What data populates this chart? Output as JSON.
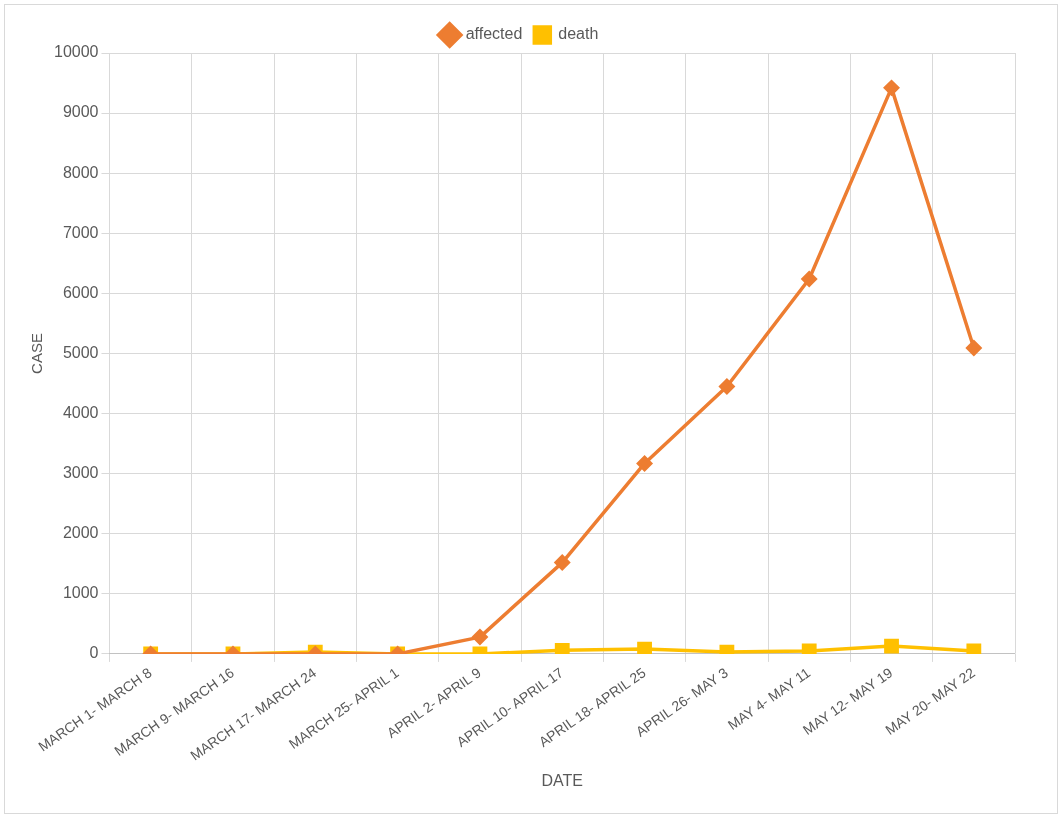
{
  "chart_data": {
    "type": "line",
    "xlabel": "DATE",
    "ylabel": "CASE",
    "categories": [
      "MARCH 1- MARCH 8",
      "MARCH 9- MARCH 16",
      "MARCH 17- MARCH 24",
      "MARCH 25- APRIL 1",
      "APRIL 2- APRIL 9",
      "APRIL 10- APRIL 17",
      "APRIL 18- APRIL 25",
      "APRIL 26- MAY 3",
      "MAY 4- MAY 11",
      "MAY 12- MAY 19",
      "MAY 20- MAY 22"
    ],
    "series": [
      {
        "name": "affected",
        "color": "#ed7d31",
        "marker": "diamond",
        "values": [
          0,
          0,
          0,
          0,
          280,
          1520,
          3170,
          4450,
          6240,
          9420,
          5090
        ]
      },
      {
        "name": "death",
        "color": "#ffc000",
        "marker": "square",
        "values": [
          0,
          0,
          30,
          0,
          0,
          60,
          80,
          30,
          50,
          130,
          50
        ]
      }
    ],
    "ylim": [
      0,
      10000
    ],
    "yticks": [
      0,
      1000,
      2000,
      3000,
      4000,
      5000,
      6000,
      7000,
      8000,
      9000,
      10000
    ],
    "grid": true,
    "legend": "top",
    "line_style": "solid"
  }
}
